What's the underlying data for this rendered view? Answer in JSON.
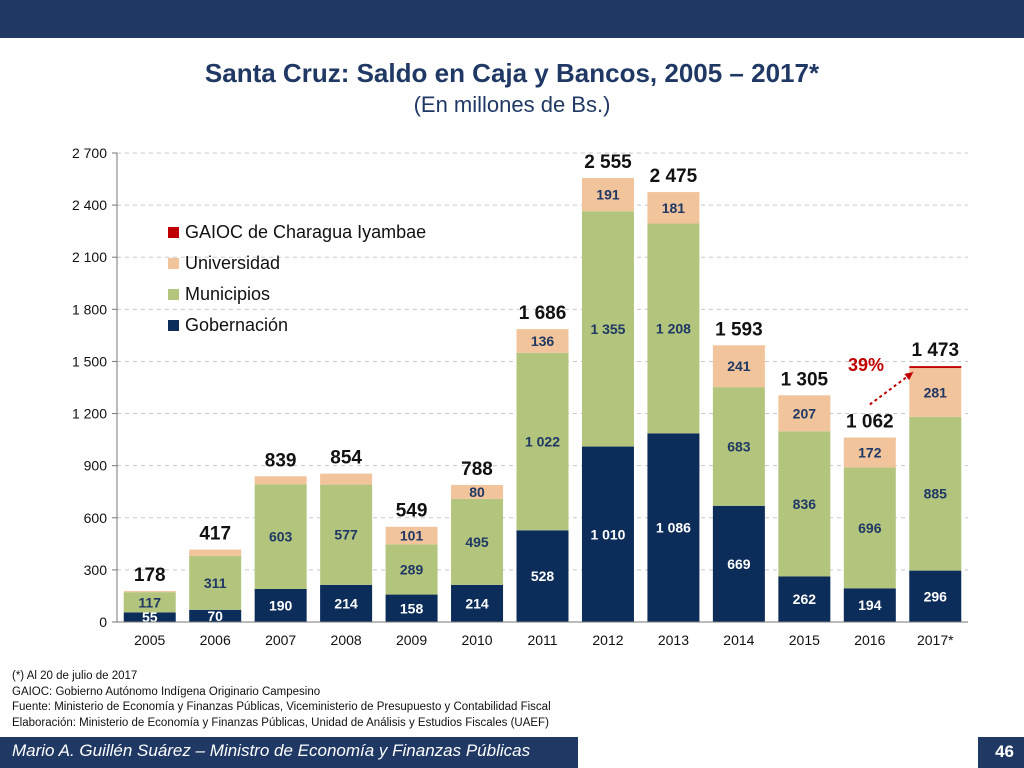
{
  "slide": {
    "title": "Santa Cruz: Saldo en Caja y Bancos, 2005 – 2017*",
    "subtitle": "(En millones de Bs.)",
    "notes": [
      "(*) Al 20 de julio de 2017",
      "GAIOC: Gobierno Autónomo Indígena Originario Campesino",
      "Fuente: Ministerio de Economía y Finanzas Públicas, Viceministerio de Presupuesto y Contabilidad Fiscal",
      "Elaboración: Ministerio de Economía y Finanzas Públicas, Unidad de Análisis y Estudios Fiscales (UAEF)"
    ],
    "footer_author": "Mario A. Guillén Suárez – Ministro de Economía y Finanzas Públicas",
    "page_number": "46"
  },
  "chart_data": {
    "type": "bar",
    "stacked": true,
    "title": "Santa Cruz: Saldo en Caja y Bancos, 2005 – 2017*",
    "ylabel": "En millones de Bs.",
    "ylim": [
      0,
      2700
    ],
    "yticks": [
      0,
      300,
      600,
      900,
      1200,
      1500,
      1800,
      2100,
      2400,
      2700
    ],
    "ytick_labels": [
      "0",
      "300",
      "600",
      "900",
      "1 200",
      "1 500",
      "1 800",
      "2 100",
      "2 400",
      "2 700"
    ],
    "grid": true,
    "legend_position": "upper-left",
    "categories": [
      "2005",
      "2006",
      "2007",
      "2008",
      "2009",
      "2010",
      "2011",
      "2012",
      "2013",
      "2014",
      "2015",
      "2016",
      "2017*"
    ],
    "series": [
      {
        "name": "Gobernación",
        "color": "#0c2d5a",
        "values": [
          55,
          70,
          190,
          214,
          158,
          214,
          528,
          1010,
          1086,
          669,
          262,
          194,
          296
        ],
        "labels": [
          "55",
          "70",
          "190",
          "214",
          "158",
          "214",
          "528",
          "1 010",
          "1 086",
          "669",
          "262",
          "194",
          "296"
        ]
      },
      {
        "name": "Municipios",
        "color": "#b3c57d",
        "values": [
          117,
          311,
          603,
          577,
          289,
          495,
          1022,
          1355,
          1208,
          683,
          836,
          696,
          885
        ],
        "labels": [
          "117",
          "311",
          "603",
          "577",
          "289",
          "495",
          "1 022",
          "1 355",
          "1 208",
          "683",
          "836",
          "696",
          "885"
        ]
      },
      {
        "name": "Universidad",
        "color": "#f2c49b",
        "values": [
          6,
          36,
          46,
          63,
          101,
          80,
          136,
          191,
          181,
          241,
          207,
          172,
          281
        ],
        "labels": [
          "",
          "",
          "",
          "",
          "101",
          "80",
          "136",
          "191",
          "181",
          "241",
          "207",
          "172",
          "281"
        ]
      },
      {
        "name": "GAIOC de Charagua Iyambae",
        "color": "#c00000",
        "values": [
          0,
          0,
          0,
          0,
          0,
          0,
          0,
          0,
          0,
          0,
          0,
          0,
          11
        ],
        "labels": [
          "",
          "",
          "",
          "",
          "",
          "",
          "",
          "",
          "",
          "",
          "",
          "",
          ""
        ]
      }
    ],
    "totals": [
      178,
      417,
      839,
      854,
      549,
      788,
      1686,
      2555,
      2475,
      1593,
      1305,
      1062,
      1473
    ],
    "total_labels": [
      "178",
      "417",
      "839",
      "854",
      "549",
      "788",
      "1 686",
      "2 555",
      "2 475",
      "1 593",
      "1 305",
      "1 062",
      "1 473"
    ],
    "annotations": [
      {
        "text": "39%",
        "from": "2016",
        "to": "2017*",
        "color": "#c00000"
      }
    ]
  }
}
